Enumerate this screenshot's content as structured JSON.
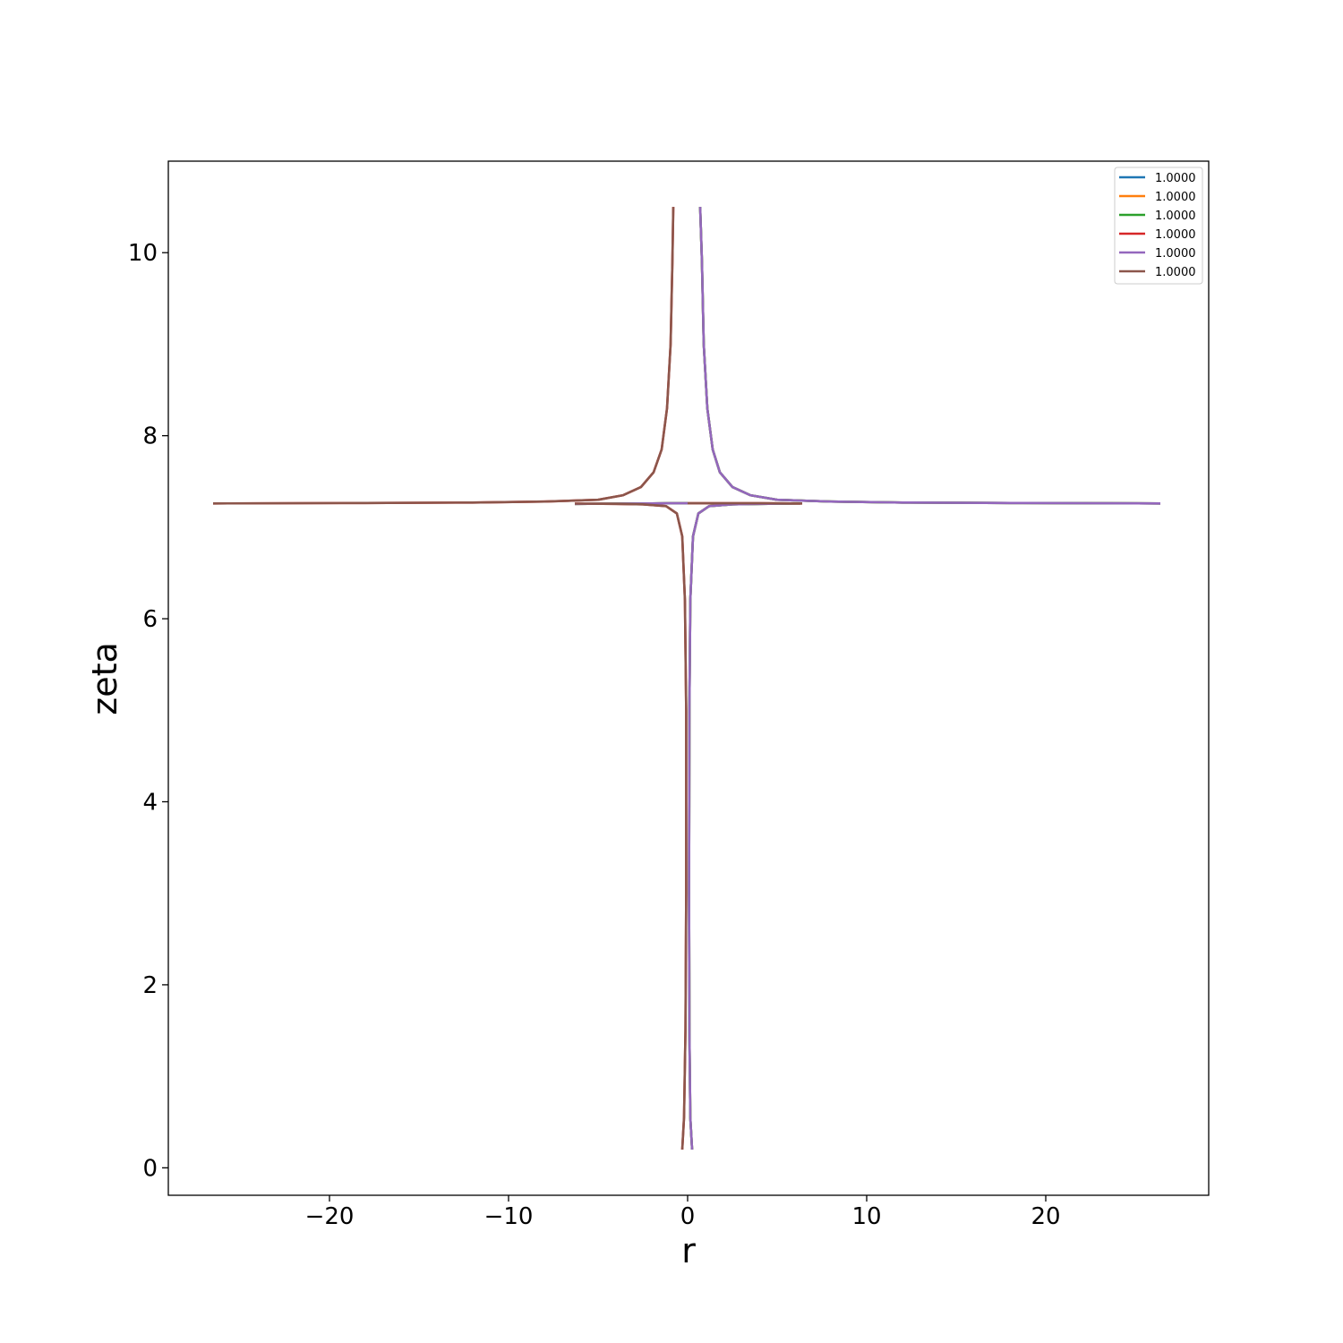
{
  "chart_data": {
    "type": "line",
    "title": "",
    "xlabel": "r",
    "ylabel": "zeta",
    "xlim": [
      -29.0,
      29.1
    ],
    "ylim": [
      -0.3,
      11.0
    ],
    "xticks": [
      -20,
      -10,
      0,
      10,
      20
    ],
    "xtick_labels": [
      "−20",
      "−10",
      "0",
      "10",
      "20"
    ],
    "yticks": [
      0,
      2,
      4,
      6,
      8,
      10
    ],
    "ytick_labels": [
      "0",
      "2",
      "4",
      "6",
      "8",
      "10"
    ],
    "grid": false,
    "legend": "top-right",
    "series": [
      {
        "name": "1.0000",
        "color": "#1f77b4",
        "branch": "right"
      },
      {
        "name": "1.0000",
        "color": "#ff7f0e",
        "branch": "right"
      },
      {
        "name": "1.0000",
        "color": "#2ca02c",
        "branch": "right"
      },
      {
        "name": "1.0000",
        "color": "#d62728",
        "branch": "left"
      },
      {
        "name": "1.0000",
        "color": "#9467bd",
        "branch": "right"
      },
      {
        "name": "1.0000",
        "color": "#8c564b",
        "branch": "left"
      }
    ],
    "curves": {
      "right": {
        "upper": [
          [
            0.7,
            10.5
          ],
          [
            0.8,
            9.9
          ],
          [
            0.9,
            9.0
          ],
          [
            1.1,
            8.3
          ],
          [
            1.4,
            7.85
          ],
          [
            1.8,
            7.6
          ],
          [
            2.5,
            7.44
          ],
          [
            3.5,
            7.35
          ],
          [
            5,
            7.3
          ],
          [
            8,
            7.28
          ],
          [
            12,
            7.27
          ],
          [
            18,
            7.265
          ],
          [
            26.4,
            7.26
          ]
        ],
        "middle": [
          [
            -6.3,
            7.255
          ],
          [
            -4,
            7.258
          ],
          [
            -2,
            7.26
          ],
          [
            -1,
            7.262
          ],
          [
            0,
            7.262
          ]
        ],
        "lower": [
          [
            0.25,
            0.2
          ],
          [
            0.15,
            0.55
          ],
          [
            0.1,
            1.5
          ],
          [
            0.08,
            3.0
          ],
          [
            0.1,
            5.0
          ],
          [
            0.15,
            6.2
          ],
          [
            0.3,
            6.9
          ],
          [
            0.6,
            7.15
          ],
          [
            1.2,
            7.23
          ],
          [
            2.5,
            7.25
          ],
          [
            4,
            7.255
          ],
          [
            6.3,
            7.26
          ]
        ]
      },
      "left": {
        "upper": [
          [
            -0.8,
            10.5
          ],
          [
            -0.85,
            9.9
          ],
          [
            -0.95,
            9.0
          ],
          [
            -1.15,
            8.3
          ],
          [
            -1.45,
            7.85
          ],
          [
            -1.9,
            7.6
          ],
          [
            -2.6,
            7.44
          ],
          [
            -3.6,
            7.35
          ],
          [
            -5,
            7.3
          ],
          [
            -8,
            7.28
          ],
          [
            -12,
            7.27
          ],
          [
            -18,
            7.265
          ],
          [
            -26.5,
            7.26
          ]
        ],
        "middle": [
          [
            6.4,
            7.26
          ],
          [
            4,
            7.262
          ],
          [
            2,
            7.262
          ],
          [
            1,
            7.262
          ],
          [
            0,
            7.262
          ]
        ],
        "lower": [
          [
            -0.3,
            0.2
          ],
          [
            -0.2,
            0.55
          ],
          [
            -0.12,
            1.5
          ],
          [
            -0.08,
            3.0
          ],
          [
            -0.08,
            5.0
          ],
          [
            -0.15,
            6.2
          ],
          [
            -0.3,
            6.9
          ],
          [
            -0.6,
            7.15
          ],
          [
            -1.2,
            7.23
          ],
          [
            -2.5,
            7.25
          ],
          [
            -4,
            7.255
          ],
          [
            -6.3,
            7.258
          ]
        ]
      }
    }
  }
}
